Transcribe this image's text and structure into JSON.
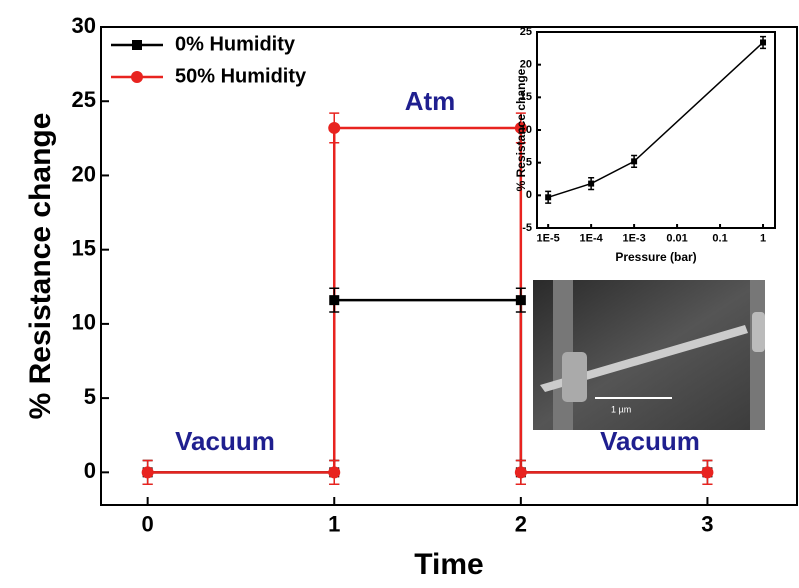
{
  "chart_data": [
    {
      "type": "line",
      "x_label": "Time",
      "y_label": "% Resistance change",
      "x": [
        0,
        1,
        1,
        2,
        2,
        3
      ],
      "series": [
        {
          "name": "0% Humidity",
          "color": "#000000",
          "marker": "square",
          "values": [
            0,
            0,
            11.6,
            11.6,
            0,
            0
          ],
          "errors": [
            0.8,
            0.8,
            0.8,
            0.8,
            0.8,
            0.8
          ]
        },
        {
          "name": "50% Humidity",
          "color": "#e8231f",
          "marker": "circle",
          "values": [
            0,
            0,
            23.2,
            23.2,
            0,
            0
          ],
          "errors": [
            0.8,
            0.8,
            1,
            1,
            0.8,
            0.8
          ]
        }
      ],
      "xlim": [
        -0.25,
        3.48
      ],
      "ylim": [
        -2.2,
        30
      ],
      "xticks": [
        0,
        1,
        2,
        3
      ],
      "yticks": [
        0,
        5,
        10,
        15,
        20,
        25,
        30
      ],
      "legend": "upper left",
      "annotations": [
        "Atm",
        "Vacuum",
        "Vacuum"
      ],
      "image_scale_label": "1 µm"
    },
    {
      "type": "line",
      "x_scale": "log",
      "x_label": "Pressure (bar)",
      "y_label": "% Resistance change",
      "x": [
        1e-05,
        0.0001,
        0.001,
        1
      ],
      "series": [
        {
          "color": "#000000",
          "marker": "square",
          "values": [
            -0.3,
            1.8,
            5.2,
            23.4
          ],
          "errors": [
            0.9,
            0.9,
            0.9,
            0.9
          ]
        }
      ],
      "xlim": [
        5.5e-06,
        1.9
      ],
      "ylim": [
        -5,
        25
      ],
      "xticks": [
        {
          "value": 1e-05,
          "label": "1E-5"
        },
        {
          "value": 0.0001,
          "label": "1E-4"
        },
        {
          "value": 0.001,
          "label": "1E-3"
        },
        0.01,
        0.1,
        1
      ],
      "yticks": [
        -5,
        0,
        5,
        10,
        15,
        20,
        25
      ]
    }
  ]
}
